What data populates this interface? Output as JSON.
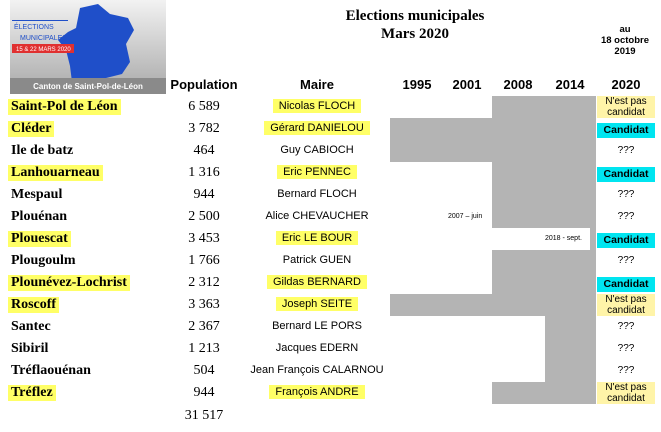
{
  "logo": {
    "line1": "ÉLECTIONS",
    "line2": "MUNICIPALES",
    "line3": "15 & 22 MARS 2020",
    "caption": "Canton de Saint-Pol-de-Léon"
  },
  "header": {
    "title": "Elections municipales",
    "subtitle": "Mars 2020",
    "date": "au\n18 octobre\n2019"
  },
  "table": {
    "columns": [
      "Population",
      "Maire",
      "1995",
      "2001",
      "2008",
      "2014",
      "2020"
    ],
    "rows": [
      {
        "commune": "Saint-Pol de Léon",
        "population": "6 589",
        "maire": "Nicolas FLOCH",
        "status": "N'est pas candidat"
      },
      {
        "commune": "Cléder",
        "population": "3 782",
        "maire": "Gérard DANIELOU",
        "status": "Candidat"
      },
      {
        "commune": "Ile de batz",
        "population": "464",
        "maire": "Guy CABIOCH",
        "status": "???"
      },
      {
        "commune": "Lanhouarneau",
        "population": "1 316",
        "maire": "Eric PENNEC",
        "status": "Candidat"
      },
      {
        "commune": "Mespaul",
        "population": "944",
        "maire": "Bernard FLOCH",
        "status": "???"
      },
      {
        "commune": "Plouénan",
        "population": "2 500",
        "maire": "Alice CHEVAUCHER",
        "status": "???",
        "note": "2007 – juin"
      },
      {
        "commune": "Plouescat",
        "population": "3 453",
        "maire": "Eric LE BOUR",
        "status": "Candidat",
        "note": "2018 - sept."
      },
      {
        "commune": "Plougoulm",
        "population": "1 766",
        "maire": "Patrick GUEN",
        "status": "???"
      },
      {
        "commune": "Plounévez-Lochrist",
        "population": "2 312",
        "maire": "Gildas BERNARD",
        "status": "Candidat"
      },
      {
        "commune": "Roscoff",
        "population": "3 363",
        "maire": "Joseph SEITE",
        "status": "N'est pas candidat"
      },
      {
        "commune": "Santec",
        "population": "2 367",
        "maire": "Bernard LE PORS",
        "status": "???"
      },
      {
        "commune": "Sibiril",
        "population": "1 213",
        "maire": "Jacques EDERN",
        "status": "???"
      },
      {
        "commune": "Tréflaouénan",
        "population": "504",
        "maire": "Jean François CALARNOU",
        "status": "???"
      },
      {
        "commune": "Tréflez",
        "population": "944",
        "maire": "François ANDRE",
        "status": "N'est pas candidat"
      }
    ],
    "total": "31 517"
  }
}
